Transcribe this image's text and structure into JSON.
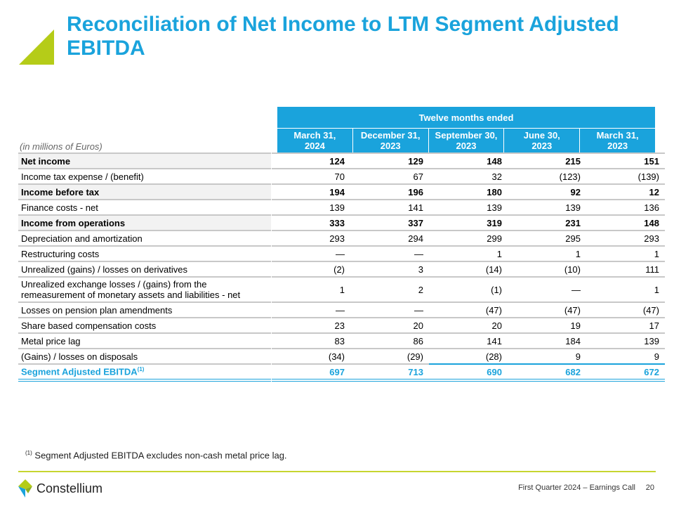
{
  "title": "Reconciliation of Net Income to LTM Segment Adjusted EBITDA",
  "units": "(in millions of Euros)",
  "header": "Twelve months ended",
  "columns": [
    "March 31,\n2024",
    "December 31,\n2023",
    "September 30,\n2023",
    "June 30,\n2023",
    "March 31,\n2023"
  ],
  "rows": [
    {
      "label": "Net income",
      "bold": true,
      "values": [
        "124",
        "129",
        "148",
        "215",
        "151"
      ]
    },
    {
      "label": "Income tax expense / (benefit)",
      "values": [
        "70",
        "67",
        "32",
        "(123)",
        "(139)"
      ]
    },
    {
      "label": "Income before tax",
      "bold": true,
      "values": [
        "194",
        "196",
        "180",
        "92",
        "12"
      ]
    },
    {
      "label": "Finance costs - net",
      "values": [
        "139",
        "141",
        "139",
        "139",
        "136"
      ]
    },
    {
      "label": "Income from operations",
      "bold": true,
      "values": [
        "333",
        "337",
        "319",
        "231",
        "148"
      ]
    },
    {
      "label": "Depreciation and amortization",
      "values": [
        "293",
        "294",
        "299",
        "295",
        "293"
      ]
    },
    {
      "label": "Restructuring costs",
      "values": [
        "—",
        "—",
        "1",
        "1",
        "1"
      ]
    },
    {
      "label": "Unrealized (gains) / losses on derivatives",
      "values": [
        "(2)",
        "3",
        "(14)",
        "(10)",
        "111"
      ]
    },
    {
      "label": "Unrealized exchange losses / (gains) from the remeasurement of monetary assets and liabilities - net",
      "values": [
        "1",
        "2",
        "(1)",
        "—",
        "1"
      ]
    },
    {
      "label": "Losses on pension plan amendments",
      "values": [
        "—",
        "—",
        "(47)",
        "(47)",
        "(47)"
      ]
    },
    {
      "label": "Share based compensation costs",
      "values": [
        "23",
        "20",
        "20",
        "19",
        "17"
      ]
    },
    {
      "label": "Metal price lag",
      "values": [
        "83",
        "86",
        "141",
        "184",
        "139"
      ]
    },
    {
      "label": "(Gains) / losses on disposals",
      "values": [
        "(34)",
        "(29)",
        "(28)",
        "9",
        "9"
      ]
    }
  ],
  "total": {
    "label": "Segment Adjusted EBITDA",
    "sup": "(1)",
    "values": [
      "697",
      "713",
      "690",
      "682",
      "672"
    ]
  },
  "footnote": {
    "sup": "(1)",
    "text": " Segment Adjusted EBITDA excludes non-cash metal price lag."
  },
  "footer": {
    "brand": "Constellium",
    "event": "First Quarter 2024 – Earnings Call",
    "page": "20"
  },
  "colors": {
    "accent": "#1aa3dc",
    "green": "#b5cc18"
  }
}
